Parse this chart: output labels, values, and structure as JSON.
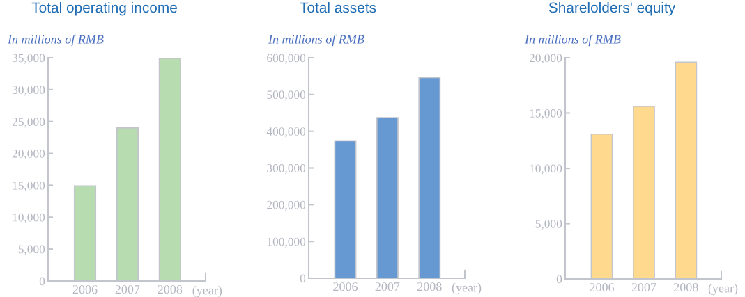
{
  "chart_data": [
    {
      "type": "bar",
      "title": "Total operating income",
      "ylabel": "In millions of RMB",
      "xlabel": "(year)",
      "categories": [
        "2006",
        "2007",
        "2008"
      ],
      "values": [
        14900,
        24000,
        34900
      ],
      "color": "#b7dcb0",
      "ylim": [
        0,
        35000
      ],
      "yticks": [
        {
          "value": 0,
          "label": "0"
        },
        {
          "value": 5000,
          "label": "5,000"
        },
        {
          "value": 10000,
          "label": "10,000"
        },
        {
          "value": 15000,
          "label": "15,000"
        },
        {
          "value": 20000,
          "label": "20,000"
        },
        {
          "value": 25000,
          "label": "25,000"
        },
        {
          "value": 30000,
          "label": "30,000"
        },
        {
          "value": 35000,
          "label": "35,000"
        }
      ],
      "grid": false,
      "legend": false
    },
    {
      "type": "bar",
      "title": "Total assets",
      "ylabel": "In millions of RMB",
      "xlabel": "(year)",
      "categories": [
        "2006",
        "2007",
        "2008"
      ],
      "values": [
        374000,
        437000,
        546000
      ],
      "color": "#6699d2",
      "ylim": [
        0,
        600000
      ],
      "yticks": [
        {
          "value": 0,
          "label": "0"
        },
        {
          "value": 100000,
          "label": "100,000"
        },
        {
          "value": 200000,
          "label": "200,000"
        },
        {
          "value": 300000,
          "label": "300,000"
        },
        {
          "value": 400000,
          "label": "400,000"
        },
        {
          "value": 500000,
          "label": "500,000"
        },
        {
          "value": 600000,
          "label": "600,000"
        }
      ],
      "grid": false,
      "legend": false
    },
    {
      "type": "bar",
      "title": "Sharelolders' equity",
      "ylabel": "In millions of RMB",
      "xlabel": "(year)",
      "categories": [
        "2006",
        "2007",
        "2008"
      ],
      "values": [
        13100,
        15600,
        19600
      ],
      "color": "#fed98e",
      "ylim": [
        0,
        20000
      ],
      "yticks": [
        {
          "value": 0,
          "label": "0"
        },
        {
          "value": 5000,
          "label": "5,000"
        },
        {
          "value": 10000,
          "label": "10,000"
        },
        {
          "value": 15000,
          "label": "15,000"
        },
        {
          "value": 20000,
          "label": "20,000"
        }
      ],
      "grid": false,
      "legend": false
    }
  ]
}
